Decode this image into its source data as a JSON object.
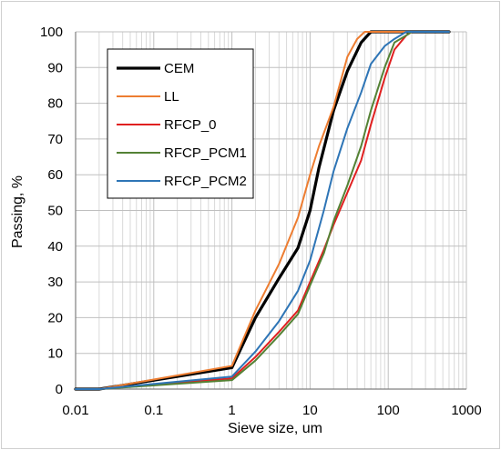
{
  "chart_data": {
    "type": "line",
    "title": "",
    "xlabel": "Sieve size, um",
    "ylabel": "Passing, %",
    "xscale": "log",
    "xlim": [
      0.01,
      1000
    ],
    "ylim": [
      0,
      100
    ],
    "xticks": [
      "0.01",
      "0.1",
      "1",
      "10",
      "100",
      "1000"
    ],
    "yticks": [
      "0",
      "10",
      "20",
      "30",
      "40",
      "50",
      "60",
      "70",
      "80",
      "90",
      "100"
    ],
    "grid": true,
    "legend_position": "top-left",
    "series": [
      {
        "name": "CEM",
        "color": "#000000",
        "width": 3.2,
        "points": [
          [
            0.01,
            0
          ],
          [
            0.02,
            0
          ],
          [
            1,
            6
          ],
          [
            2,
            20
          ],
          [
            4,
            31
          ],
          [
            7,
            39.5
          ],
          [
            10,
            50
          ],
          [
            13,
            62
          ],
          [
            20,
            78
          ],
          [
            30,
            89
          ],
          [
            45,
            97
          ],
          [
            60,
            100
          ],
          [
            100,
            100
          ],
          [
            300,
            100
          ],
          [
            600,
            100
          ]
        ]
      },
      {
        "name": "LL",
        "color": "#ED7D31",
        "width": 2,
        "points": [
          [
            0.01,
            0
          ],
          [
            0.02,
            0
          ],
          [
            1,
            6.5
          ],
          [
            2,
            22
          ],
          [
            4,
            35
          ],
          [
            7,
            48
          ],
          [
            10,
            60
          ],
          [
            13,
            68
          ],
          [
            20,
            79
          ],
          [
            30,
            93
          ],
          [
            40,
            98
          ],
          [
            50,
            100
          ],
          [
            100,
            100
          ],
          [
            300,
            100
          ],
          [
            600,
            100
          ]
        ]
      },
      {
        "name": "RFCP_0",
        "color": "#E02020",
        "width": 2,
        "points": [
          [
            0.01,
            0
          ],
          [
            0.02,
            0
          ],
          [
            1,
            3
          ],
          [
            2,
            9
          ],
          [
            4,
            16
          ],
          [
            7,
            22
          ],
          [
            10,
            30
          ],
          [
            15,
            39
          ],
          [
            20,
            46
          ],
          [
            30,
            55
          ],
          [
            45,
            64
          ],
          [
            60,
            74
          ],
          [
            90,
            87
          ],
          [
            120,
            95
          ],
          [
            170,
            99
          ],
          [
            200,
            100
          ],
          [
            300,
            100
          ],
          [
            600,
            100
          ]
        ]
      },
      {
        "name": "RFCP_PCM1",
        "color": "#548235",
        "width": 2,
        "points": [
          [
            0.01,
            0
          ],
          [
            0.02,
            0
          ],
          [
            1,
            2.5
          ],
          [
            2,
            8
          ],
          [
            4,
            15
          ],
          [
            7,
            21
          ],
          [
            10,
            29
          ],
          [
            15,
            38
          ],
          [
            20,
            47
          ],
          [
            30,
            57
          ],
          [
            45,
            68
          ],
          [
            60,
            78
          ],
          [
            90,
            90
          ],
          [
            120,
            97
          ],
          [
            170,
            99
          ],
          [
            200,
            100
          ],
          [
            300,
            100
          ],
          [
            600,
            100
          ]
        ]
      },
      {
        "name": "RFCP_PCM2",
        "color": "#2E75B6",
        "width": 2,
        "points": [
          [
            0.01,
            0
          ],
          [
            0.02,
            0
          ],
          [
            1,
            3.5
          ],
          [
            2,
            10.5
          ],
          [
            4,
            19
          ],
          [
            7,
            27.5
          ],
          [
            10,
            36
          ],
          [
            15,
            50
          ],
          [
            20,
            61
          ],
          [
            30,
            73
          ],
          [
            45,
            83
          ],
          [
            60,
            91
          ],
          [
            90,
            96
          ],
          [
            120,
            98
          ],
          [
            170,
            100
          ],
          [
            300,
            100
          ],
          [
            600,
            100
          ]
        ]
      }
    ]
  }
}
